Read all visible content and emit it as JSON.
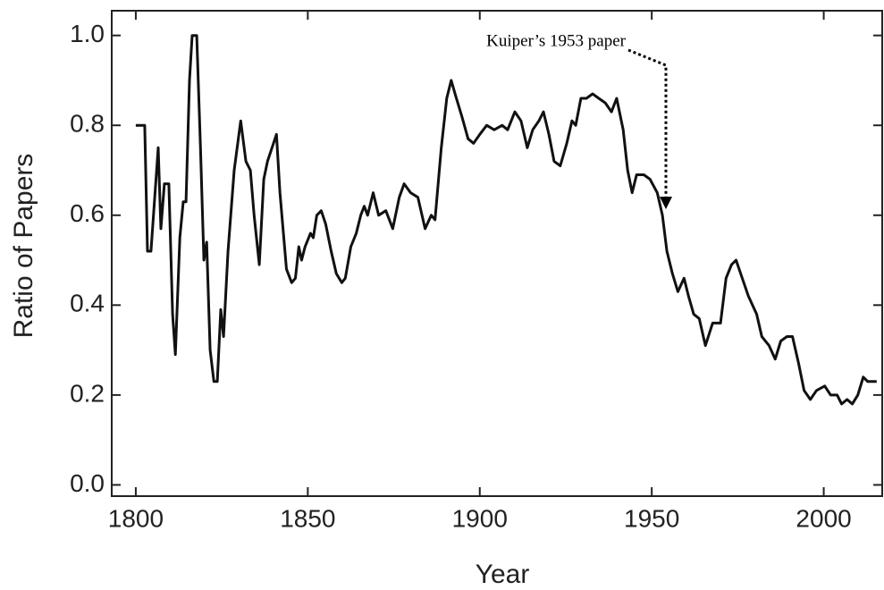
{
  "chart_data": {
    "type": "line",
    "xlabel": "Year",
    "ylabel": "Ratio of Papers",
    "annotation": "Kuiper’s 1953 paper",
    "xlim": [
      1793,
      2017
    ],
    "ylim": [
      -0.025,
      1.055
    ],
    "xticks": [
      1800,
      1850,
      1900,
      1950,
      2000
    ],
    "yticks": [
      {
        "value": 0,
        "label": "0.0"
      },
      0.2,
      0.4,
      0.6,
      0.8,
      {
        "value": 1,
        "label": "1.0"
      }
    ],
    "color": "#111111",
    "x": [
      1800,
      1802.6,
      1803.4,
      1804.4,
      1806.5,
      1807.3,
      1808.3,
      1809.6,
      1810.7,
      1811.5,
      1812.8,
      1813.8,
      1814.6,
      1815.6,
      1816.4,
      1817.7,
      1818.8,
      1819.8,
      1820.6,
      1821.6,
      1822.7,
      1823.7,
      1824.7,
      1825.5,
      1826.8,
      1828.6,
      1830.5,
      1832,
      1833.3,
      1834.4,
      1835.9,
      1837.2,
      1838.3,
      1840.9,
      1841.9,
      1843.8,
      1845.3,
      1846.4,
      1847.4,
      1848.2,
      1849.2,
      1850.8,
      1851.6,
      1852.6,
      1853.9,
      1855.2,
      1856.8,
      1858.3,
      1859.9,
      1860.9,
      1862.5,
      1864.1,
      1865.4,
      1866.4,
      1867.4,
      1869,
      1870.6,
      1872.7,
      1874.7,
      1876.6,
      1878,
      1879.9,
      1882,
      1884.1,
      1885.9,
      1887,
      1888.8,
      1890.4,
      1891.7,
      1893.2,
      1894.8,
      1896.6,
      1898.2,
      1900,
      1902,
      1904.2,
      1906.5,
      1908.1,
      1910.2,
      1912,
      1913.8,
      1915.4,
      1917.2,
      1918.5,
      1920.1,
      1921.6,
      1923.4,
      1925.3,
      1926.8,
      1927.9,
      1929.4,
      1931,
      1932.8,
      1934.6,
      1936.5,
      1938.3,
      1939.8,
      1941.7,
      1943,
      1944.3,
      1945.6,
      1947.7,
      1949.5,
      1951.6,
      1953.1,
      1954.4,
      1956,
      1957.6,
      1959.4,
      1960.7,
      1962.2,
      1963.8,
      1965.6,
      1967.7,
      1970,
      1971.6,
      1973.2,
      1974.5,
      1976.3,
      1978.1,
      1980.5,
      1982,
      1984.1,
      1985.9,
      1987.5,
      1989.3,
      1990.9,
      1992.7,
      1994.3,
      1996.1,
      1997.9,
      2000.3,
      2002,
      2003.9,
      2005.2,
      2006.8,
      2008.3,
      2009.9,
      2011.5,
      2012.8,
      2015.4
    ],
    "values": [
      0.8,
      0.8,
      0.52,
      0.52,
      0.75,
      0.57,
      0.67,
      0.67,
      0.38,
      0.29,
      0.55,
      0.63,
      0.63,
      0.9,
      1.0,
      1.0,
      0.75,
      0.5,
      0.54,
      0.3,
      0.23,
      0.23,
      0.39,
      0.33,
      0.52,
      0.7,
      0.81,
      0.72,
      0.7,
      0.6,
      0.49,
      0.68,
      0.72,
      0.78,
      0.65,
      0.48,
      0.45,
      0.46,
      0.53,
      0.5,
      0.53,
      0.56,
      0.55,
      0.6,
      0.61,
      0.58,
      0.52,
      0.47,
      0.45,
      0.46,
      0.53,
      0.56,
      0.6,
      0.62,
      0.6,
      0.65,
      0.6,
      0.61,
      0.57,
      0.64,
      0.67,
      0.65,
      0.64,
      0.57,
      0.6,
      0.59,
      0.75,
      0.86,
      0.9,
      0.86,
      0.82,
      0.77,
      0.76,
      0.78,
      0.8,
      0.79,
      0.8,
      0.79,
      0.83,
      0.81,
      0.75,
      0.79,
      0.81,
      0.83,
      0.78,
      0.72,
      0.71,
      0.76,
      0.81,
      0.8,
      0.86,
      0.86,
      0.87,
      0.86,
      0.85,
      0.83,
      0.86,
      0.79,
      0.7,
      0.65,
      0.69,
      0.69,
      0.68,
      0.65,
      0.6,
      0.52,
      0.47,
      0.43,
      0.46,
      0.42,
      0.38,
      0.37,
      0.31,
      0.36,
      0.36,
      0.46,
      0.49,
      0.5,
      0.46,
      0.42,
      0.38,
      0.33,
      0.31,
      0.28,
      0.32,
      0.33,
      0.33,
      0.27,
      0.21,
      0.19,
      0.21,
      0.22,
      0.2,
      0.2,
      0.18,
      0.19,
      0.18,
      0.2,
      0.24,
      0.23,
      0.23
    ]
  }
}
